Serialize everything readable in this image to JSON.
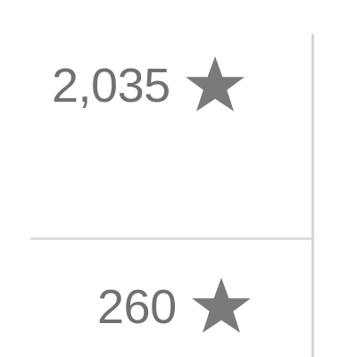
{
  "counts": [
    {
      "value": "2,035",
      "icon": "star-icon"
    },
    {
      "value": "260",
      "icon": "star-icon"
    }
  ],
  "colors": {
    "text": "#717171",
    "icon": "#7a7a7a",
    "divider": "#d6d6d6"
  }
}
